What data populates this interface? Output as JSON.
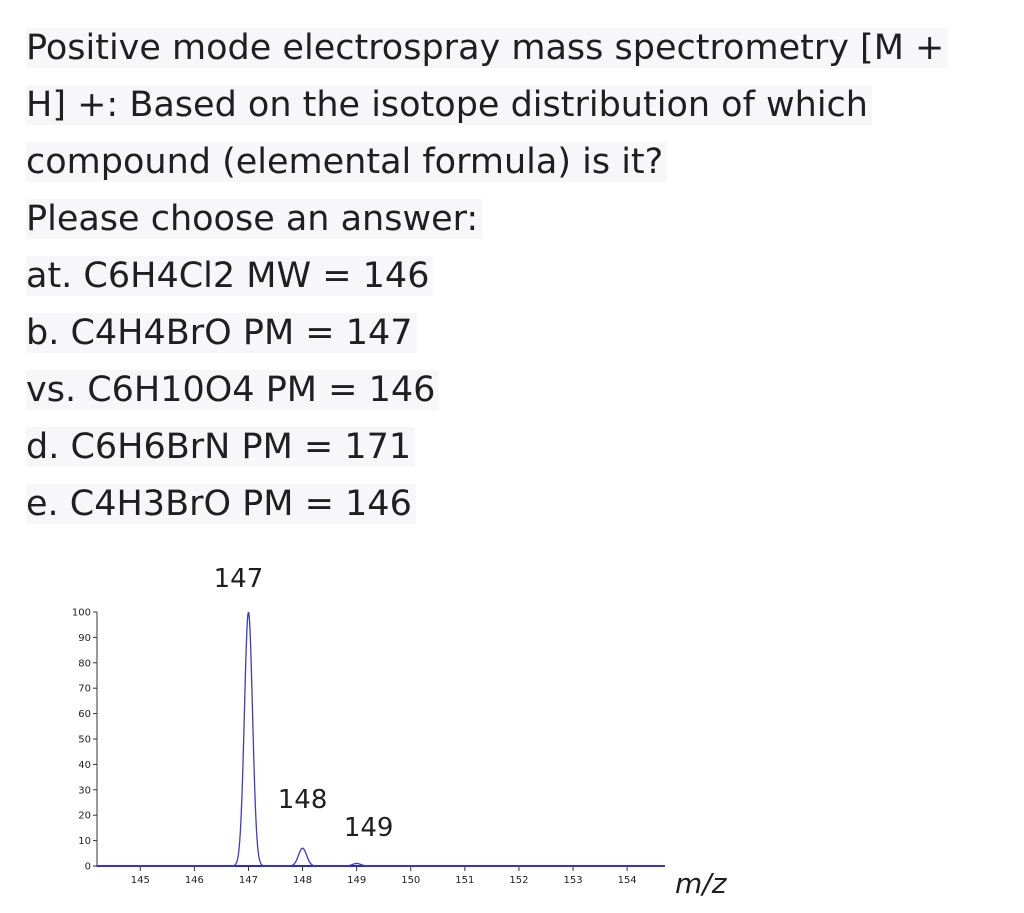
{
  "question": {
    "lines": [
      "Positive mode electrospray mass spectrometry [M +",
      "H] +: Based on the isotope distribution of which",
      "compound (elemental formula) is it?",
      "Please choose an answer:"
    ],
    "options": [
      "at. C6H4Cl2 MW = 146",
      "b. C4H4BrO PM = 147",
      "vs. C6H10O4 PM = 146",
      "d. C6H6BrN PM = 171",
      "e. C4H3BrO PM = 146"
    ]
  },
  "chart_data": {
    "type": "line",
    "title": "",
    "xlabel": "m/z",
    "ylabel": "",
    "xlim": [
      144.2,
      154.7
    ],
    "ylim": [
      0,
      100
    ],
    "x_ticks": [
      145,
      146,
      147,
      148,
      149,
      150,
      151,
      152,
      153,
      154
    ],
    "y_ticks": [
      0,
      10,
      20,
      30,
      40,
      50,
      60,
      70,
      80,
      90,
      100
    ],
    "series": [
      {
        "color": "#3a3ad6",
        "peaks": [
          {
            "mz": 147,
            "intensity": 100
          },
          {
            "mz": 148,
            "intensity": 7
          },
          {
            "mz": 149,
            "intensity": 1
          }
        ]
      }
    ],
    "annotations": [
      {
        "text": "147",
        "mz": 147
      },
      {
        "text": "148",
        "mz": 148
      },
      {
        "text": "149",
        "mz": 149
      }
    ],
    "grid": false,
    "baseline_color": "#2a2acc"
  }
}
